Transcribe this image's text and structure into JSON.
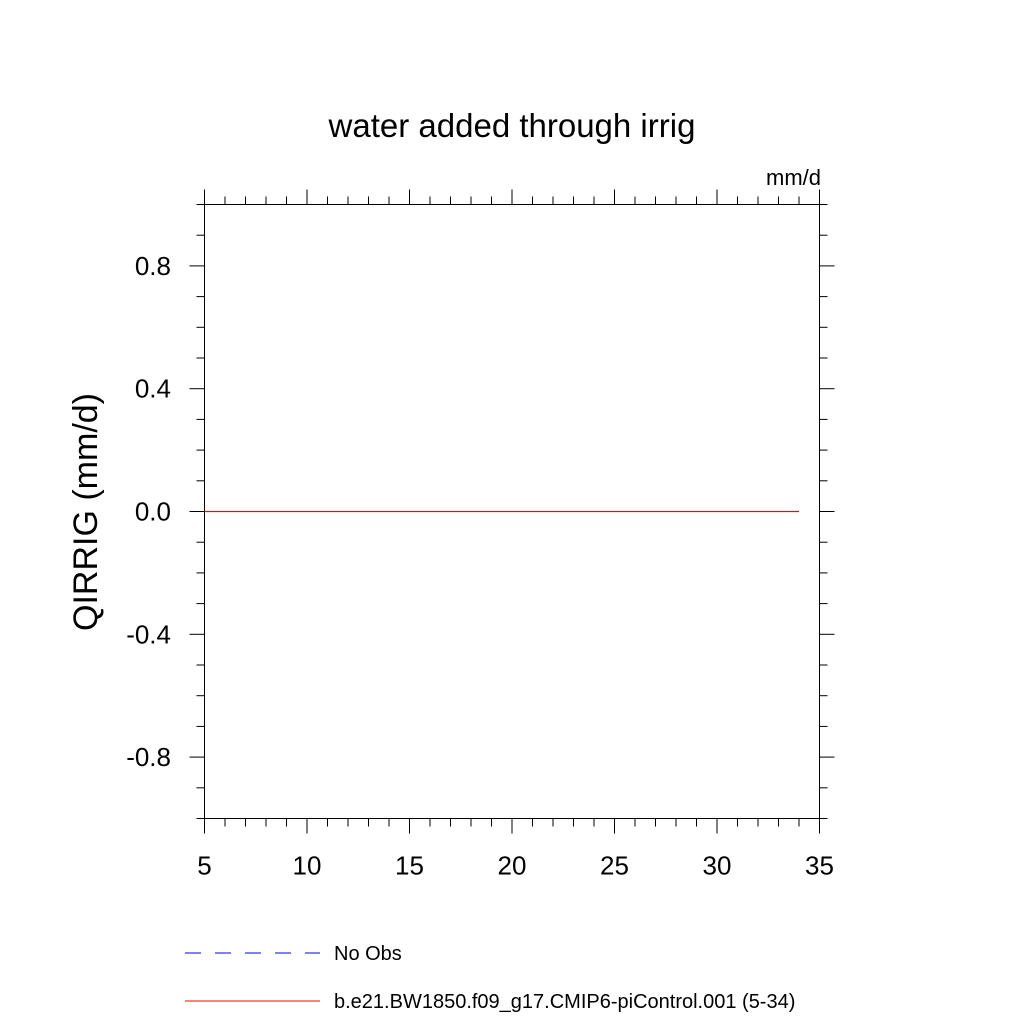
{
  "chart_data": {
    "type": "line",
    "title": "water added through irrig",
    "units_label": "mm/d",
    "ylabel": "QIRRIG  (mm/d)",
    "xlabel": "",
    "xlim": [
      5,
      35
    ],
    "ylim": [
      -1,
      1
    ],
    "x_ticks": [
      5,
      10,
      15,
      20,
      25,
      30,
      35
    ],
    "x_tick_labels": [
      "5",
      "10",
      "15",
      "20",
      "25",
      "30",
      "35"
    ],
    "y_ticks": [
      -0.8,
      -0.4,
      0.0,
      0.4,
      0.8
    ],
    "y_tick_labels": [
      "-0.8",
      "-0.4",
      "0.0",
      "0.4",
      "0.8"
    ],
    "x_minor_step": 1,
    "y_minor_step": 0.1,
    "grid": false,
    "legend_position": "bottom",
    "series": [
      {
        "name": "No Obs",
        "color": "#0000ff",
        "style": "dashed",
        "x": [],
        "y": []
      },
      {
        "name": "b.e21.BW1850.f09_g17.CMIP6-piControl.001 (5-34)",
        "color": "#ff0000",
        "style": "solid",
        "x": [
          5,
          34
        ],
        "y": [
          0.0,
          0.0
        ]
      }
    ]
  }
}
